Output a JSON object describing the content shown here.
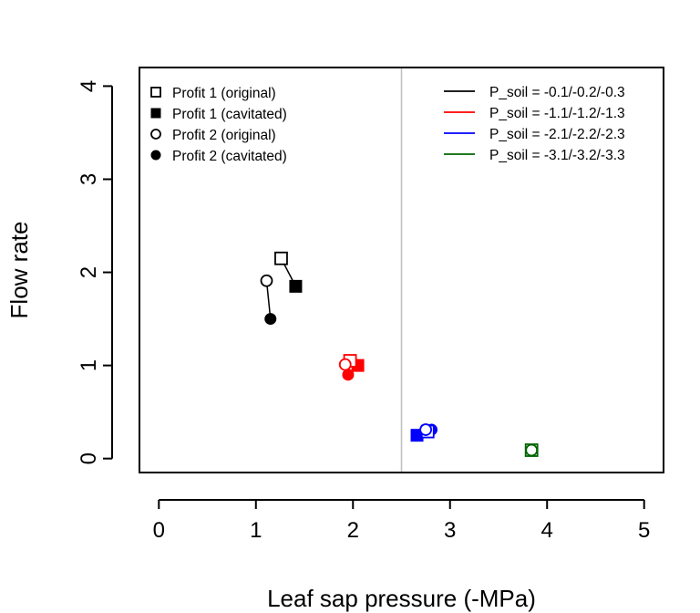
{
  "chart_data": {
    "type": "scatter",
    "xlabel": "Leaf sap pressure (-MPa)",
    "ylabel": "Flow rate",
    "xlim": [
      -0.2,
      5.2
    ],
    "ylim": [
      -0.15,
      4.2
    ],
    "x_ticks": [
      "0",
      "1",
      "2",
      "3",
      "4",
      "5"
    ],
    "y_ticks": [
      "0",
      "1",
      "2",
      "3",
      "4"
    ],
    "reference_line": {
      "orientation": "vertical",
      "x": 2.5,
      "color": "#bebebe"
    },
    "legend_left": {
      "position": "top-left",
      "entries": [
        {
          "label": "Profit 1 (original)",
          "marker": "square-open"
        },
        {
          "label": "Profit 1 (cavitated)",
          "marker": "square-filled"
        },
        {
          "label": "Profit 2 (original)",
          "marker": "circle-open"
        },
        {
          "label": "Profit 2 (cavitated)",
          "marker": "circle-filled"
        }
      ]
    },
    "legend_right": {
      "position": "top-right",
      "entries": [
        {
          "label": "P_soil = -0.1/-0.2/-0.3",
          "color": "#000000"
        },
        {
          "label": "P_soil = -1.1/-1.2/-1.3",
          "color": "#ff0000"
        },
        {
          "label": "P_soil = -2.1/-2.2/-2.3",
          "color": "#0000ff"
        },
        {
          "label": "P_soil = -3.1/-3.2/-3.3",
          "color": "#006400"
        }
      ]
    },
    "series": [
      {
        "color": "#000000",
        "profit1_original": [
          1.26,
          2.15
        ],
        "profit1_cavitated": [
          1.41,
          1.85
        ],
        "profit2_original": [
          1.11,
          1.91
        ],
        "profit2_cavitated": [
          1.15,
          1.5
        ]
      },
      {
        "color": "#ff0000",
        "profit1_original": [
          1.97,
          1.05
        ],
        "profit1_cavitated": [
          2.05,
          1.0
        ],
        "profit2_original": [
          1.92,
          1.01
        ],
        "profit2_cavitated": [
          1.95,
          0.9
        ]
      },
      {
        "color": "#0000ff",
        "profit1_original": [
          2.77,
          0.29
        ],
        "profit1_cavitated": [
          2.66,
          0.25
        ],
        "profit2_original": [
          2.75,
          0.31
        ],
        "profit2_cavitated": [
          2.81,
          0.31
        ]
      },
      {
        "color": "#006400",
        "profit1_original": [
          3.84,
          0.09
        ],
        "profit1_cavitated": [
          3.84,
          0.09
        ],
        "profit2_original": [
          3.84,
          0.09
        ],
        "profit2_cavitated": [
          3.84,
          0.09
        ]
      }
    ]
  }
}
